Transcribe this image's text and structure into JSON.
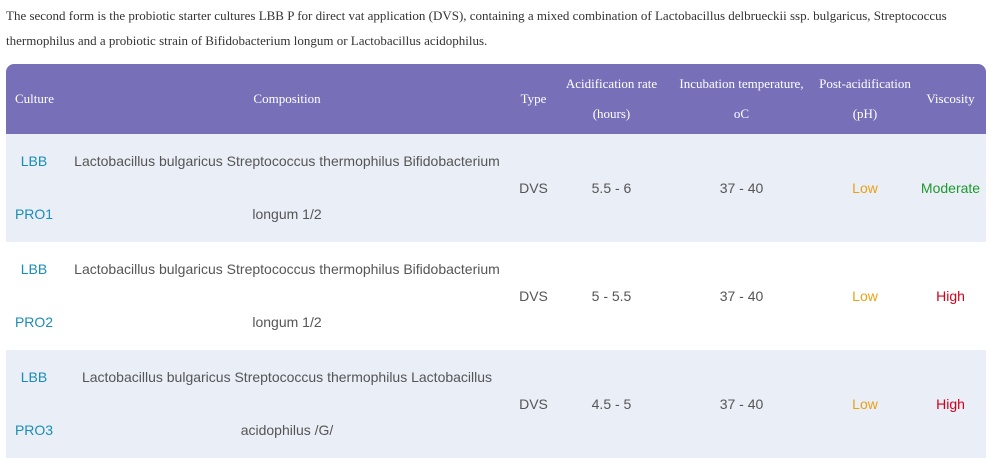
{
  "intro": "The second form is the probiotic starter cultures LBB P for direct vat application (DVS), containing a mixed combination of Lactobacillus delbrueckii ssp. bulgaricus, Streptococcus thermophilus and a probiotic strain of Bifidobacterium longum or Lactobacillus acidophilus.",
  "table": {
    "header": [
      "Culture",
      "Composition",
      "Type",
      "Acidification rate (hours)",
      "Incubation temperature, oC",
      "Post-acidification (pH)",
      "Viscosity"
    ],
    "header_color": "#7770b9",
    "rows": [
      {
        "cells": [
          "LBB PRO1",
          "Lactobacillus bulgaricus Streptococcus thermophilus Bifidobacterium longum 1/2",
          "DVS",
          "5.5 - 6",
          "37 - 40",
          "Low",
          "Moderate"
        ],
        "viscosity_color": "#1e9a2e"
      },
      {
        "cells": [
          "LBB PRO2",
          "Lactobacillus bulgaricus Streptococcus thermophilus Bifidobacterium longum 1/2",
          "DVS",
          "5 - 5.5",
          "37 - 40",
          "Low",
          "High"
        ],
        "viscosity_color": "#d4001a"
      },
      {
        "cells": [
          "LBB PRO3",
          "Lactobacillus bulgaricus Streptococcus thermophilus Lactobacillus acidophilus /G/",
          "DVS",
          "4.5 - 5",
          "37 - 40",
          "Low",
          "High"
        ],
        "viscosity_color": "#d4001a"
      }
    ]
  }
}
